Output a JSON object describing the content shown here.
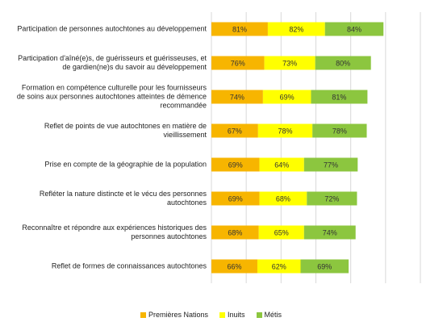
{
  "chart_data": {
    "type": "stacked_bar_horizontal",
    "categories": [
      "Participation de personnes autochtones au développement",
      "Participation d'aîné(e)s, de guérisseurs et guérisseuses, et de gardien(ne)s du savoir au développement",
      "Formation en compétence culturelle pour les fournisseurs de soins aux personnes autochtones atteintes de démence recommandée",
      "Reflet de points de vue autochtones en matière de vieillissement",
      "Prise en compte de la géographie de la population",
      "Refléter la nature distincte et le vécu des personnes autochtones",
      "Reconnaître et répondre aux expériences historiques des personnes autochtones",
      "Reflet de formes de connaissances autochtones"
    ],
    "series": [
      {
        "name": "Premières Nations",
        "color": "#f7b500",
        "values": [
          81,
          76,
          74,
          67,
          69,
          69,
          68,
          66
        ],
        "value_labels": [
          "81%",
          "76%",
          "74%",
          "67%",
          "69%",
          "69%",
          "68%",
          "66%"
        ]
      },
      {
        "name": "Inuits",
        "color": "#ffff00",
        "values": [
          82,
          73,
          69,
          78,
          64,
          68,
          65,
          62
        ],
        "value_labels": [
          "82%",
          "73%",
          "69%",
          "78%",
          "64%",
          "68%",
          "65%",
          "62%"
        ]
      },
      {
        "name": "Métis",
        "color": "#8cc63f",
        "values": [
          84,
          80,
          81,
          78,
          77,
          72,
          74,
          69
        ],
        "value_labels": [
          "84%",
          "80%",
          "81%",
          "78%",
          "77%",
          "72%",
          "74%",
          "69%"
        ]
      }
    ],
    "xlim": [
      0,
      300
    ],
    "xticks": [
      0,
      50,
      100,
      150,
      200,
      250,
      300
    ],
    "grid": true,
    "legend": "bottom"
  }
}
